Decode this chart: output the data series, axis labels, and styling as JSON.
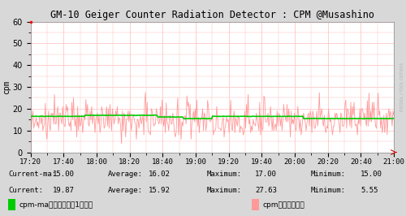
{
  "title": "GM-10 Geiger Counter Radiation Detector : CPM @Musashino",
  "ylabel": "cpm",
  "bg_color": "#d8d8d8",
  "plot_bg_color": "#ffffff",
  "grid_color": "#ffbbbb",
  "ylim": [
    0,
    60
  ],
  "yticks": [
    0,
    10,
    20,
    30,
    40,
    50,
    60
  ],
  "x_start_minutes": 1040,
  "x_end_minutes": 1260,
  "x_tick_labels": [
    "17:20",
    "17:40",
    "18:00",
    "18:20",
    "18:40",
    "19:00",
    "19:20",
    "19:40",
    "20:00",
    "20:20",
    "20:40",
    "21:00"
  ],
  "x_tick_positions": [
    1040,
    1060,
    1080,
    1100,
    1120,
    1140,
    1160,
    1180,
    1200,
    1220,
    1240,
    1260
  ],
  "instant_color": "#ff9999",
  "ma_color": "#00cc00",
  "ma_linewidth": 1.2,
  "instant_linewidth": 0.6,
  "watermark": "RSTOOL / TOOL OSTIKEA",
  "current_ma": 15.0,
  "current": 19.87,
  "avg_ma": 16.02,
  "avg": 15.92,
  "max_ma": 17.0,
  "max_val": 27.63,
  "min_ma": 15.0,
  "min_val": 5.55,
  "seed": 42,
  "title_fontsize": 8.5,
  "axis_fontsize": 7.0,
  "label_fontsize": 6.5,
  "info_fontsize": 6.5
}
